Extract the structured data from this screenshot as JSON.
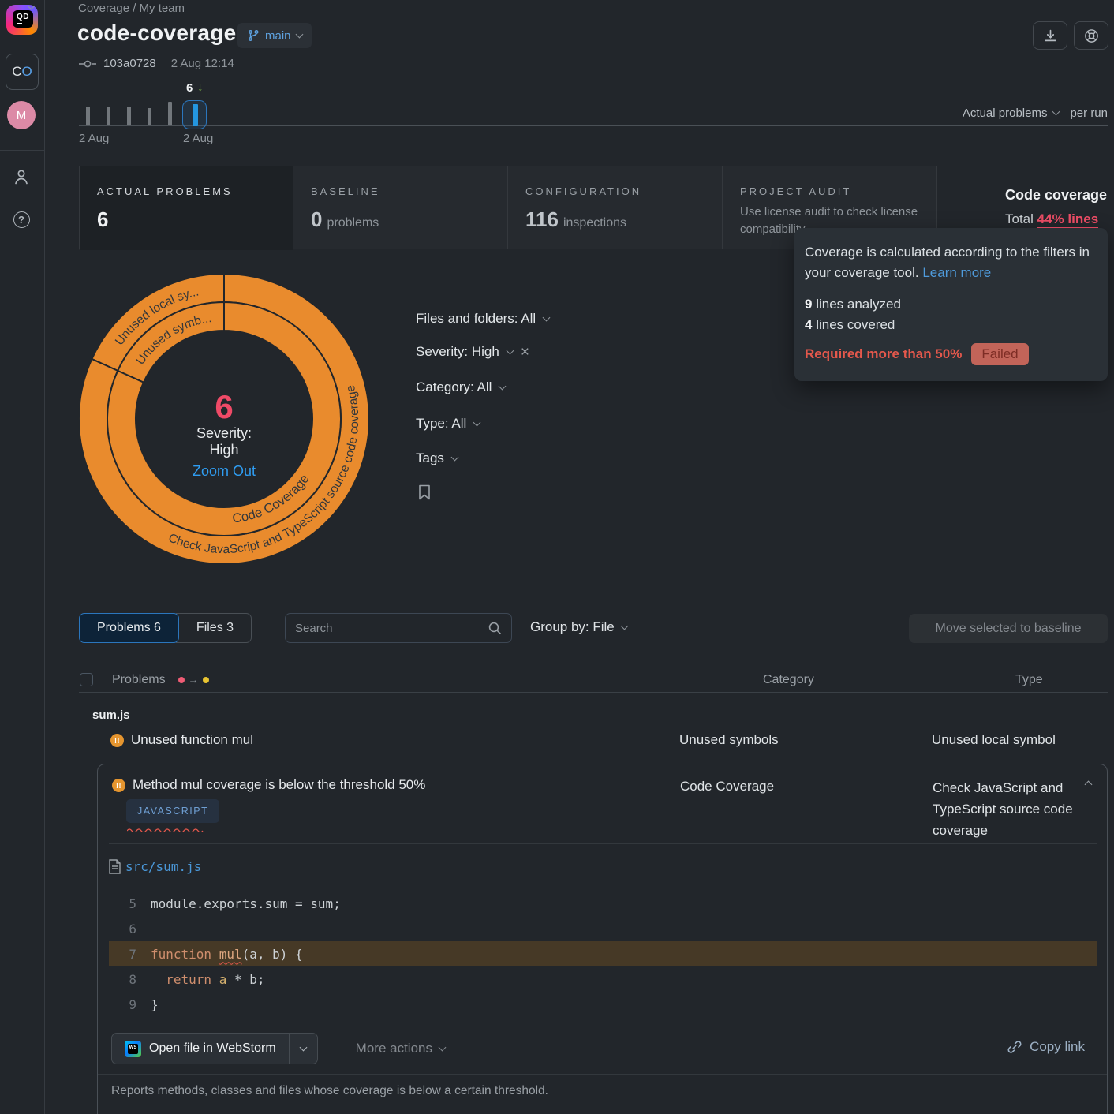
{
  "app": {
    "logo_text": "QD",
    "org_initial_1": "C",
    "org_initial_2": "O",
    "avatar_initial": "M"
  },
  "icons": {
    "trend_down_arrow": "↓",
    "clear_filter": "×",
    "transition_arrow": "→",
    "severity_warning": "!!",
    "help_question": "?"
  },
  "header": {
    "breadcrumb": "Coverage / My team",
    "title": "code-coverage",
    "branch": "main",
    "commit_hash": "103a0728",
    "commit_date": "2 Aug 12:14"
  },
  "timeline": {
    "selected_count": "6",
    "bars": [
      24,
      24,
      24,
      22,
      30
    ],
    "selected_bar_height": 28,
    "date_start": "2 Aug",
    "date_selected": "2 Aug",
    "metric_label": "Actual problems",
    "per_run_label": "per run"
  },
  "tabs": {
    "actual": {
      "label": "ACTUAL PROBLEMS",
      "value": "6"
    },
    "baseline": {
      "label": "BASELINE",
      "value": "0",
      "suffix": "problems"
    },
    "configuration": {
      "label": "CONFIGURATION",
      "value": "116",
      "suffix": "inspections"
    },
    "audit": {
      "label": "PROJECT AUDIT",
      "description": "Use license audit to check license compatibility"
    }
  },
  "coverage": {
    "title": "Code coverage",
    "total_label": "Total",
    "total_value": "44% lines",
    "tooltip": {
      "body": "Coverage is calculated according to the filters in your coverage tool.",
      "link": "Learn more",
      "analyzed_value": "9",
      "analyzed_label": " lines analyzed",
      "covered_value": "4",
      "covered_label": " lines covered",
      "required": "Required more than 50%",
      "status": "Failed"
    }
  },
  "sunburst": {
    "center_value": "6",
    "center_label_line1": "Severity:",
    "center_label_line2": "High",
    "zoom_out": "Zoom Out",
    "inner_small": "Unused symb...",
    "inner_large": "Code Coverage",
    "outer_small": "Unused local sy...",
    "outer_large": "Check JavaScript and TypeScript source code coverage",
    "segment_color": "#e98b2d"
  },
  "filters": {
    "files": "Files and folders: All",
    "severity": "Severity: High",
    "category": "Category: All",
    "type": "Type: All",
    "tags": "Tags"
  },
  "toolbar": {
    "problems_tab": "Problems 6",
    "files_tab": "Files 3",
    "search_placeholder": "Search",
    "group_by": "Group by: File",
    "move_baseline": "Move selected to baseline"
  },
  "table": {
    "problems_header": "Problems",
    "category_header": "Category",
    "type_header": "Type",
    "group_name": "sum.js",
    "row1": {
      "problem": "Unused function mul",
      "category": "Unused symbols",
      "type": "Unused local symbol"
    },
    "row2": {
      "problem": "Method mul coverage is below the threshold 50%",
      "language_badge": "JAVASCRIPT",
      "category": "Code Coverage",
      "type": "Check JavaScript and TypeScript source code coverage"
    }
  },
  "code": {
    "file_path": "src/sum.js",
    "line5_num": "5",
    "line5_code": "module.exports.sum = sum;",
    "line6_num": "6",
    "line7_num": "7",
    "line7_kw": "function ",
    "line7_fn": "mul",
    "line7_rest": "(a, b) {",
    "line8_num": "8",
    "line8_indent": "  ",
    "line8_kw": "return ",
    "line8_param": "a",
    "line8_rest": " * b;",
    "line9_num": "9",
    "line9_code": "}"
  },
  "actions": {
    "open_file": "Open file in WebStorm",
    "ws_icon_text": "WS",
    "more": "More actions",
    "copy_link": "Copy link"
  },
  "footer": {
    "description": "Reports methods, classes and files whose coverage is below a certain threshold."
  },
  "colors": {
    "accent_blue": "#2b76bd",
    "link_blue": "#4f9bdc",
    "orange": "#e98b2d",
    "problem_red": "#ee4d66",
    "warn_yellow": "#e9c431",
    "trend_green": "#71a343",
    "fail_badge_bg": "#c26459",
    "code_highlight": "#463926"
  }
}
